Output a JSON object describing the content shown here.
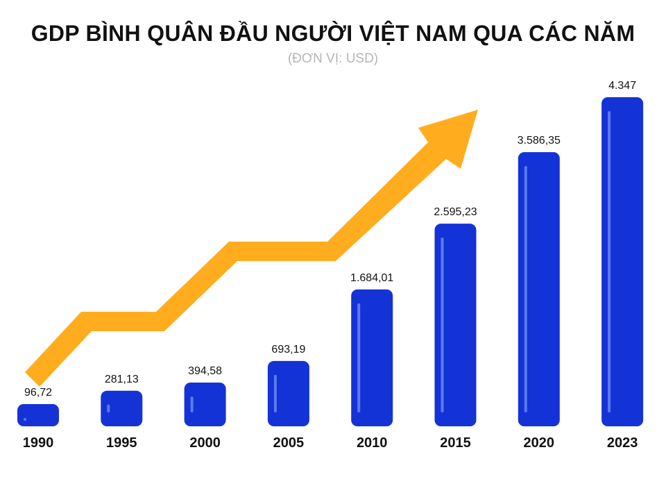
{
  "title": "GDP BÌNH QUÂN ĐẦU NGƯỜI VIỆT NAM QUA CÁC NĂM",
  "subtitle": "(ĐƠN VỊ: USD)",
  "colors": {
    "bar": "#1433d6",
    "bar_highlight": "#5b7bf0",
    "arrow": "#ffad1f"
  },
  "chart_data": {
    "type": "bar",
    "title": "GDP BÌNH QUÂN ĐẦU NGƯỜI VIỆT NAM QUA CÁC NĂM",
    "subtitle": "(ĐƠN VỊ: USD)",
    "categories": [
      "1990",
      "1995",
      "2000",
      "2005",
      "2010",
      "2015",
      "2020",
      "2023"
    ],
    "values": [
      96.72,
      281.13,
      394.58,
      693.19,
      1684.01,
      2595.23,
      3586.35,
      4347
    ],
    "value_labels": [
      "96,72",
      "281,13",
      "394,58",
      "693,19",
      "1.684,01",
      "2.595,23",
      "3.586,35",
      "4.347"
    ],
    "grid": false,
    "legend": "none",
    "annotation": "rising-trend-arrow"
  }
}
